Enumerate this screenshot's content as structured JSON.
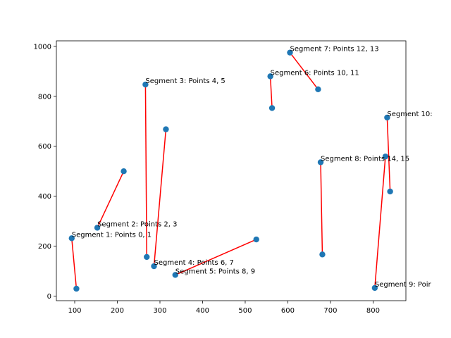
{
  "chart_data": {
    "type": "scatter",
    "title": "",
    "xlabel": "",
    "ylabel": "",
    "xlim": [
      57,
      877
    ],
    "ylim": [
      -18,
      1022
    ],
    "xticks": [
      100,
      200,
      300,
      400,
      500,
      600,
      700,
      800
    ],
    "yticks": [
      0,
      200,
      400,
      600,
      800,
      1000
    ],
    "grid": false,
    "point_color": "#1f77b4",
    "line_color": "#ff0000",
    "points": [
      {
        "x": 93,
        "y": 232
      },
      {
        "x": 104,
        "y": 30
      },
      {
        "x": 153,
        "y": 274
      },
      {
        "x": 215,
        "y": 500
      },
      {
        "x": 266,
        "y": 847
      },
      {
        "x": 269,
        "y": 157
      },
      {
        "x": 286,
        "y": 120
      },
      {
        "x": 314,
        "y": 668
      },
      {
        "x": 336,
        "y": 85
      },
      {
        "x": 526,
        "y": 227
      },
      {
        "x": 559,
        "y": 880
      },
      {
        "x": 563,
        "y": 753
      },
      {
        "x": 605,
        "y": 975
      },
      {
        "x": 671,
        "y": 828
      },
      {
        "x": 677,
        "y": 536
      },
      {
        "x": 681,
        "y": 167
      },
      {
        "x": 804,
        "y": 33
      },
      {
        "x": 829,
        "y": 559
      },
      {
        "x": 833,
        "y": 715
      },
      {
        "x": 840,
        "y": 419
      }
    ],
    "segments": [
      {
        "from": 0,
        "to": 1,
        "label": "Segment 1: Points 0, 1"
      },
      {
        "from": 2,
        "to": 3,
        "label": "Segment 2: Points 2, 3"
      },
      {
        "from": 4,
        "to": 5,
        "label": "Segment 3: Points 4, 5"
      },
      {
        "from": 6,
        "to": 7,
        "label": "Segment 4: Points 6, 7"
      },
      {
        "from": 8,
        "to": 9,
        "label": "Segment 5: Points 8, 9"
      },
      {
        "from": 10,
        "to": 11,
        "label": "Segment 6: Points 10, 11"
      },
      {
        "from": 12,
        "to": 13,
        "label": "Segment 7: Points 12, 13"
      },
      {
        "from": 14,
        "to": 15,
        "label": "Segment 8: Points 14, 15"
      },
      {
        "from": 16,
        "to": 17,
        "label": "Segment 9: Poir"
      },
      {
        "from": 18,
        "to": 19,
        "label": "Segment 10:"
      }
    ]
  }
}
